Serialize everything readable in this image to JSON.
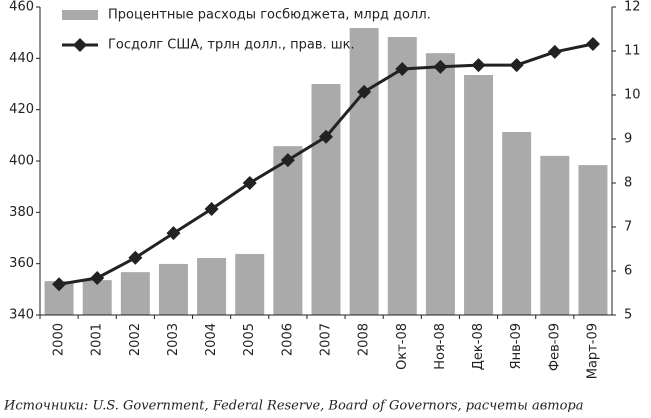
{
  "chart_data": {
    "type": "bar",
    "note": "Источники: U.S. Government, Federal Reserve, Board of Governors, расчеты автора",
    "categories": [
      "2000",
      "2001",
      "2002",
      "2003",
      "2004",
      "2005",
      "2006",
      "2007",
      "2008",
      "Окт-08",
      "Ноя-08",
      "Дек-08",
      "Янв-09",
      "Фев-09",
      "Март-09"
    ],
    "series": [
      {
        "name": "Процентные расходы госбюджета, млрд долл.",
        "type": "bar",
        "color": "#aaaaaa",
        "values": [
          353.2,
          353.6,
          356.7,
          359.9,
          362.2,
          363.8,
          405.8,
          430,
          451.8,
          448.3,
          442,
          433.5,
          411.3,
          402,
          398.4
        ]
      },
      {
        "name": "Госдолг США, трлн долл., прав. шк.",
        "type": "line",
        "axis": "y2",
        "color": "#222222",
        "values": [
          5.7,
          5.84,
          6.3,
          6.86,
          7.41,
          8.0,
          8.52,
          9.05,
          10.07,
          10.59,
          10.64,
          10.68,
          10.68,
          10.98,
          11.16
        ]
      }
    ],
    "ylim": [
      340,
      460
    ],
    "yticks": [
      340,
      360,
      380,
      400,
      420,
      440,
      460
    ],
    "y2lim": [
      5,
      12
    ],
    "y2ticks": [
      5,
      6,
      7,
      8,
      9,
      10,
      11,
      12
    ]
  }
}
